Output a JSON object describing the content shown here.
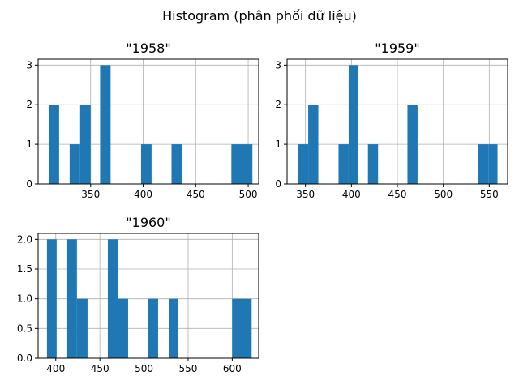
{
  "figure": {
    "suptitle": "Histogram (phân phối dữ liệu)"
  },
  "chart_data": [
    {
      "type": "histogram",
      "title": "\"1958\"",
      "xlabel": "",
      "ylabel": "",
      "grid": true,
      "xlim": [
        300,
        510
      ],
      "ylim": [
        0,
        3.15
      ],
      "xticks": [
        350,
        400,
        450,
        500
      ],
      "xtick_labels": [
        "350",
        "400",
        "450",
        "500"
      ],
      "yticks": [
        0,
        1,
        2,
        3
      ],
      "ytick_labels": [
        "0",
        "1",
        "2",
        "3"
      ],
      "bar_color": "#1f77b4",
      "bins": [
        {
          "x0": 310,
          "x1": 320,
          "count": 2
        },
        {
          "x0": 330,
          "x1": 340,
          "count": 1
        },
        {
          "x0": 340,
          "x1": 350,
          "count": 2
        },
        {
          "x0": 359,
          "x1": 369,
          "count": 3
        },
        {
          "x0": 398,
          "x1": 408,
          "count": 1
        },
        {
          "x0": 427,
          "x1": 437,
          "count": 1
        },
        {
          "x0": 484,
          "x1": 494,
          "count": 1
        },
        {
          "x0": 494,
          "x1": 504,
          "count": 1
        }
      ]
    },
    {
      "type": "histogram",
      "title": "\"1959\"",
      "xlabel": "",
      "ylabel": "",
      "grid": true,
      "xlim": [
        330,
        570
      ],
      "ylim": [
        0,
        3.15
      ],
      "xticks": [
        350,
        400,
        450,
        500,
        550
      ],
      "xtick_labels": [
        "350",
        "400",
        "450",
        "500",
        "550"
      ],
      "yticks": [
        0,
        1,
        2,
        3
      ],
      "ytick_labels": [
        "0",
        "1",
        "2",
        "3"
      ],
      "bar_color": "#1f77b4",
      "bins": [
        {
          "x0": 342,
          "x1": 353,
          "count": 1
        },
        {
          "x0": 353,
          "x1": 364,
          "count": 2
        },
        {
          "x0": 386,
          "x1": 397,
          "count": 1
        },
        {
          "x0": 397,
          "x1": 407,
          "count": 3
        },
        {
          "x0": 418,
          "x1": 429,
          "count": 1
        },
        {
          "x0": 461,
          "x1": 472,
          "count": 2
        },
        {
          "x0": 538,
          "x1": 549,
          "count": 1
        },
        {
          "x0": 549,
          "x1": 559,
          "count": 1
        }
      ]
    },
    {
      "type": "histogram",
      "title": "\"1960\"",
      "xlabel": "",
      "ylabel": "",
      "grid": true,
      "xlim": [
        380,
        630
      ],
      "ylim": [
        0,
        2.1
      ],
      "xticks": [
        400,
        450,
        500,
        550,
        600
      ],
      "xtick_labels": [
        "400",
        "450",
        "500",
        "550",
        "600"
      ],
      "yticks": [
        0,
        0.5,
        1,
        1.5,
        2
      ],
      "ytick_labels": [
        "0.0",
        "0.5",
        "1.0",
        "1.5",
        "2.0"
      ],
      "bar_color": "#1f77b4",
      "bins": [
        {
          "x0": 390,
          "x1": 401,
          "count": 2
        },
        {
          "x0": 413,
          "x1": 424,
          "count": 2
        },
        {
          "x0": 424,
          "x1": 436,
          "count": 1
        },
        {
          "x0": 459,
          "x1": 471,
          "count": 2
        },
        {
          "x0": 471,
          "x1": 482,
          "count": 1
        },
        {
          "x0": 505,
          "x1": 516,
          "count": 1
        },
        {
          "x0": 528,
          "x1": 539,
          "count": 1
        },
        {
          "x0": 600,
          "x1": 622,
          "count": 1
        }
      ]
    }
  ]
}
